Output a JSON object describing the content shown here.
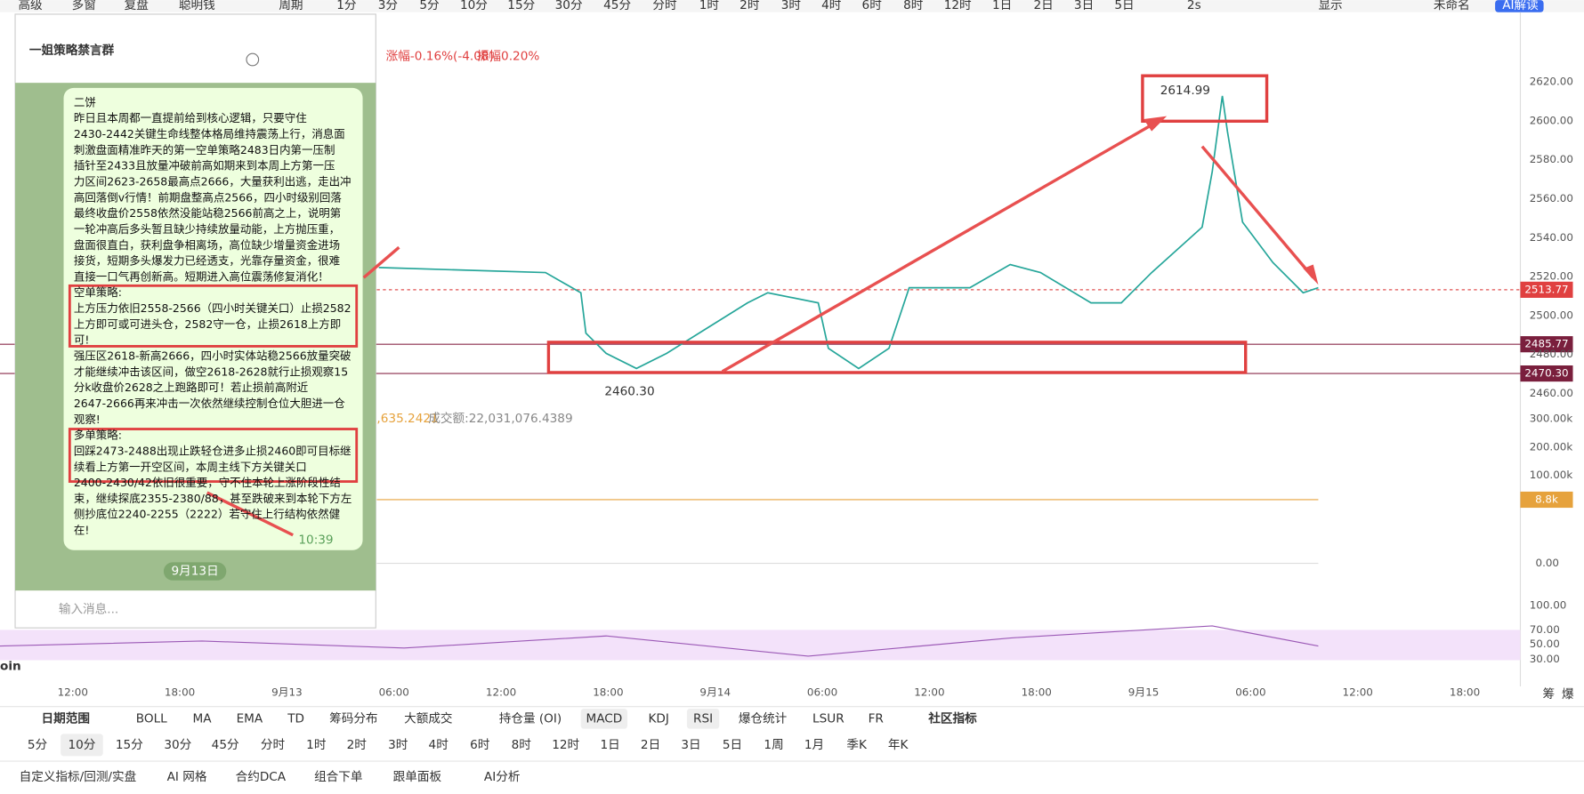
{
  "toolbar": {
    "items": [
      "高级",
      "多窗",
      "复盘",
      "聪明钱",
      "周期",
      "1分",
      "3分",
      "5分",
      "10分",
      "15分",
      "30分",
      "45分",
      "分时",
      "1时",
      "2时",
      "3时",
      "4时",
      "6时",
      "8时",
      "12时",
      "1日",
      "2日",
      "3日",
      "5日"
    ],
    "right": [
      "2s",
      "显示",
      "未命名",
      "AI解读"
    ]
  },
  "chat": {
    "title": "一姐策略禁言群",
    "lines": [
      "二饼",
      "昨日且本周都一直提前给到核心逻辑，只要守住",
      "2430-2442关键生命线整体格局维持震荡上行，消息面",
      "刺激盘面精准昨天的第一空单策略2483日内第一压制",
      "插针至2433且放量冲破前高如期来到本周上方第一压",
      "力区间2623-2658最高点2666，大量获利出逃，走出冲",
      "高回落倒v行情！前期盘整高点2566，四小时级别回落",
      "最终收盘价2558依然没能站稳2566前高之上，说明第",
      "一轮冲高后多头暂且缺少持续放量动能，上方抛压重，",
      "盘面很直白，获利盘争相离场，高位缺少增量资金进场",
      "接货，短期多头爆发力已经透支，光靠存量资金，很难",
      "直接一口气再创新高。短期进入高位震荡修复消化！",
      "空单策略:",
      "上方压力依旧2558-2566（四小时关键关口）止损2582",
      "上方即可或可进头仓，2582守一仓，止损2618上方即",
      "可!",
      "强压区2618-新高2666，四小时实体站稳2566放量突破",
      "才能继续冲击该区间，做空2618-2628就行止损观察15",
      "分k收盘价2628之上跑路即可！若止损前高附近",
      "2647-2666再来冲击一次依然继续控制仓位大胆进一仓",
      "观察!",
      "多单策略:",
      "回踩2473-2488出现止跌轻仓进多止损2460即可目标继",
      "续看上方第一开空区间，本周主线下方关键关口",
      "2400-2430/42依旧很重要，守不住本轮上涨阶段性结",
      "束，继续探底2355-2380/88，甚至跌破来到本轮下方左",
      "侧抄底位2240-2255（2222）若守住上行结构依然健",
      "在!"
    ],
    "time": "10:39",
    "date": "9月13日",
    "input_placeholder": "输入消息..."
  },
  "chart": {
    "change_label": "涨幅",
    "change": "-0.16%(-4.08)",
    "amplitude_label": "振幅",
    "amplitude": "0.20%",
    "price_axis": [
      "2620.00",
      "2600.00",
      "2580.00",
      "2560.00",
      "2540.00",
      "2520.00",
      "2500.00",
      "2480.00",
      "2460.00"
    ],
    "last_price": "2513.77",
    "level_high": "2485.77",
    "level_low": "2470.30",
    "high": "2614.99",
    "low": "2460.30",
    "volume_info": ",635.2421",
    "turnover": "成交额:22,031,076.4389",
    "volume_axis": [
      "300.00k",
      "200.00k",
      "100.00k"
    ],
    "volume_last": "8.8k",
    "macd_axis": "0.00",
    "rsi_axis": [
      "100.00",
      "70.00",
      "50.00",
      "30.00"
    ],
    "symbol": "oin",
    "time_axis": [
      "12:00",
      "18:00",
      "9月13",
      "06:00",
      "12:00",
      "18:00",
      "9月14",
      "06:00",
      "12:00",
      "18:00",
      "9月15",
      "06:00",
      "12:00",
      "18:00"
    ],
    "side": [
      "筹",
      "爆"
    ]
  },
  "indicators": [
    "日期范围",
    "BOLL",
    "MA",
    "EMA",
    "TD",
    "筹码分布",
    "大额成交",
    "持仓量 (OI)",
    "MACD",
    "KDJ",
    "RSI",
    "爆仓统计",
    "LSUR",
    "FR",
    "社区指标"
  ],
  "timeframes": [
    "5分",
    "10分",
    "15分",
    "30分",
    "45分",
    "分时",
    "1时",
    "2时",
    "3时",
    "4时",
    "6时",
    "8时",
    "12时",
    "1日",
    "2日",
    "3日",
    "5日",
    "1周",
    "1月",
    "季K",
    "年K"
  ],
  "bottom_tools": [
    "自定义指标/回测/实盘",
    "AI 网格",
    "合约DCA",
    "组合下单",
    "跟单面板",
    "AI分析"
  ]
}
